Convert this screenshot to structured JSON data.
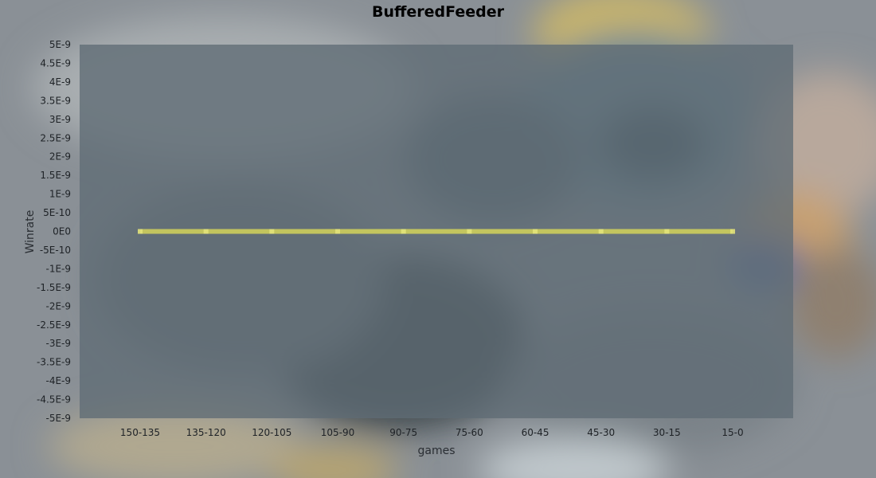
{
  "chart_data": {
    "type": "line",
    "title": "BufferedFeeder",
    "xlabel": "games",
    "ylabel": "Winrate",
    "categories": [
      "150-135",
      "135-120",
      "120-105",
      "105-90",
      "90-75",
      "75-60",
      "60-45",
      "45-30",
      "30-15",
      "15-0"
    ],
    "series": [
      {
        "values": [
          0,
          0,
          0,
          0,
          0,
          0,
          0,
          0,
          0,
          0
        ]
      }
    ],
    "y_ticks": [
      "5E-9",
      "4.5E-9",
      "4E-9",
      "3.5E-9",
      "3E-9",
      "2.5E-9",
      "2E-9",
      "1.5E-9",
      "1E-9",
      "5E-10",
      "0E0",
      "-5E-10",
      "-1E-9",
      "-1.5E-9",
      "-2E-9",
      "-2.5E-9",
      "-3E-9",
      "-3.5E-9",
      "-4E-9",
      "-4.5E-9",
      "-5E-9"
    ],
    "ylim": [
      -5e-09,
      5e-09
    ],
    "grid": false,
    "legend": "none"
  },
  "colors": {
    "plot_background": "#5f6b74",
    "line": "#d4d45a"
  }
}
